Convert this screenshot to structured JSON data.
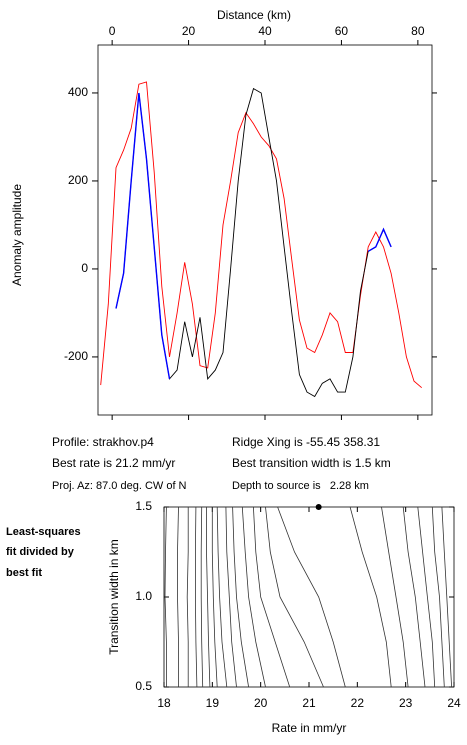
{
  "chart_data": [
    {
      "type": "line",
      "xlabel": "Distance (km)",
      "ylabel": "Anomaly amplitude",
      "x": [
        -3,
        -1,
        1,
        3,
        5,
        7,
        9,
        11,
        13,
        15,
        17,
        19,
        21,
        23,
        25,
        27,
        29,
        31,
        33,
        35,
        37,
        39,
        41,
        43,
        45,
        47,
        49,
        51,
        53,
        55,
        57,
        59,
        61,
        63,
        65,
        67,
        69,
        71,
        73,
        75,
        77,
        79,
        81
      ],
      "series": [
        {
          "color": "#ff0000",
          "values": [
            -264,
            -80,
            230,
            270,
            320,
            420,
            425,
            220,
            -40,
            -200,
            -100,
            15,
            -80,
            -220,
            -225,
            -100,
            100,
            200,
            310,
            355,
            330,
            300,
            280,
            250,
            160,
            20,
            -116,
            -180,
            -190,
            -150,
            -100,
            -120,
            -190,
            -190,
            -60,
            50,
            84,
            50,
            -10,
            -100,
            -200,
            -255,
            -270
          ]
        },
        {
          "color": "#000000",
          "values": [
            null,
            null,
            -90,
            -10,
            200,
            400,
            250,
            50,
            -150,
            -250,
            -230,
            -120,
            -200,
            -110,
            -250,
            -230,
            -190,
            0,
            200,
            350,
            410,
            400,
            300,
            200,
            50,
            -100,
            -240,
            -280,
            -290,
            -260,
            -250,
            -280,
            -280,
            -200,
            -50,
            40,
            50,
            90,
            50,
            null,
            null,
            null,
            null
          ]
        },
        {
          "color": "#0000ff",
          "values": [
            null,
            null,
            -90,
            -10,
            200,
            400,
            250,
            50,
            -150,
            -250,
            null,
            null,
            null,
            null,
            null,
            null,
            null,
            null,
            null,
            null,
            null,
            null,
            null,
            null,
            null,
            null,
            null,
            null,
            null,
            null,
            null,
            null,
            null,
            null,
            null,
            40,
            50,
            90,
            50,
            null,
            null,
            null,
            null
          ]
        }
      ],
      "xlim": [
        -3.7,
        83.7
      ],
      "xticks": [
        0,
        20,
        40,
        60,
        80
      ],
      "ylim": [
        -332,
        509
      ],
      "yticks": [
        -200,
        0,
        200,
        400
      ],
      "annotations": [
        "Profile: strakhov.p4",
        "Best rate is 21.2 mm/yr",
        "Proj. Az: 87.0 deg. CW of N",
        "Ridge Xing is -55.45 358.31",
        "Best transition width is 1.5 km",
        "Depth to source is   2.28 km"
      ]
    },
    {
      "type": "contour",
      "xlabel": "Rate in mm/yr",
      "ylabel": "Transition width in km",
      "annotations": [
        "Least-squares",
        "fit divided by",
        "best fit"
      ],
      "widths": [
        0.5,
        0.75,
        1.0,
        1.25,
        1.5
      ],
      "contours": [
        [
          18.05,
          18.05,
          18.02,
          18.03,
          18.05
        ],
        [
          18.3,
          18.3,
          18.28,
          18.28,
          18.3
        ],
        [
          18.5,
          18.5,
          18.48,
          18.5,
          18.5
        ],
        [
          18.68,
          18.66,
          18.65,
          18.65,
          18.66
        ],
        [
          18.8,
          18.78,
          18.77,
          18.77,
          18.78
        ],
        [
          18.95,
          18.92,
          18.9,
          18.88,
          18.88
        ],
        [
          19.1,
          19.05,
          19.02,
          19.0,
          19.0
        ],
        [
          19.3,
          19.2,
          19.15,
          19.12,
          19.1
        ],
        [
          19.5,
          19.4,
          19.35,
          19.3,
          19.28
        ],
        [
          19.75,
          19.6,
          19.5,
          19.45,
          19.42
        ],
        [
          20.1,
          19.9,
          19.75,
          19.68,
          19.62
        ],
        [
          20.6,
          20.3,
          20.0,
          19.9,
          19.85
        ],
        [
          21.3,
          20.9,
          20.4,
          20.2,
          20.1
        ],
        [
          21.75,
          21.5,
          21.2,
          20.7,
          20.35
        ],
        [
          22.7,
          22.6,
          22.4,
          22.1,
          21.85
        ],
        [
          23.05,
          22.95,
          22.8,
          22.65,
          22.5
        ],
        [
          23.4,
          23.3,
          23.2,
          23.05,
          22.95
        ],
        [
          23.6,
          23.55,
          23.45,
          23.35,
          23.25
        ],
        [
          23.8,
          23.75,
          23.7,
          23.6,
          23.55
        ],
        [
          23.95,
          23.9,
          23.85,
          23.8,
          23.75
        ]
      ],
      "contour_color": "#333333",
      "best_fit": {
        "rate": 21.2,
        "width": 1.5
      },
      "xlim": [
        18,
        24
      ],
      "xticks": [
        18,
        19,
        20,
        21,
        22,
        23,
        24
      ],
      "ylim": [
        0.5,
        1.5
      ],
      "yticks": [
        0.5,
        {
          "value": 1.0,
          "label": "1.0"
        },
        1.5
      ]
    }
  ]
}
